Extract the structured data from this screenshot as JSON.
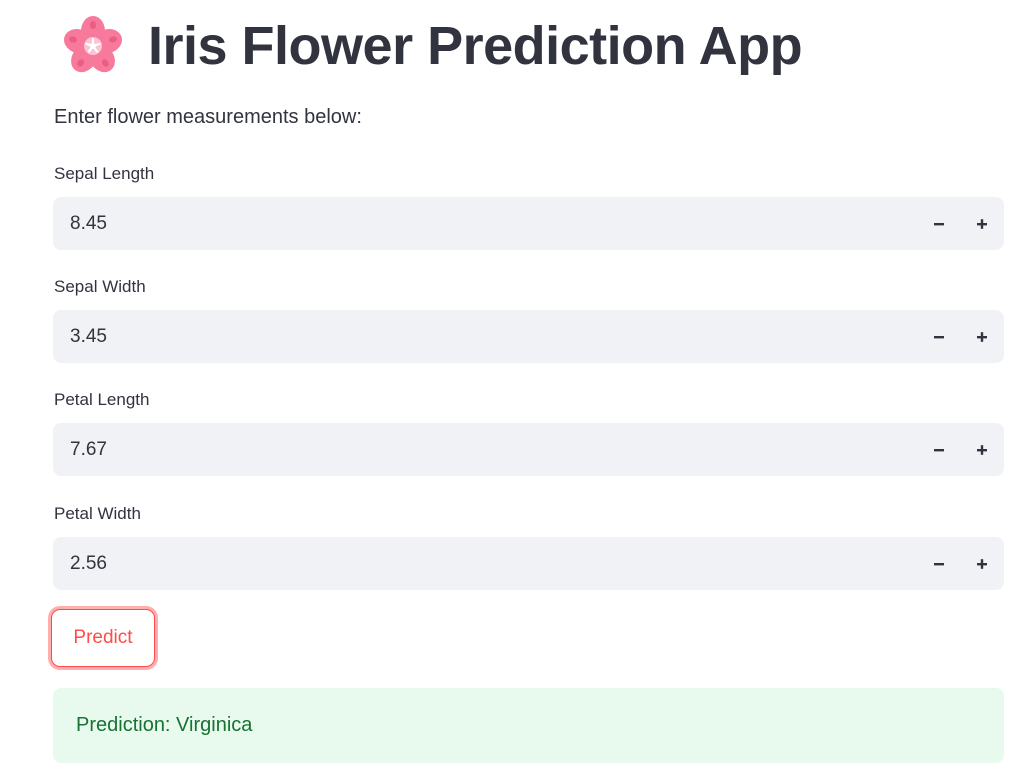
{
  "app": {
    "title": "Iris Flower Prediction App",
    "title_icon": "cherry-blossom-icon",
    "intro": "Enter flower measurements below:"
  },
  "fields": [
    {
      "label": "Sepal Length",
      "value": "8.45"
    },
    {
      "label": "Sepal Width",
      "value": "3.45"
    },
    {
      "label": "Petal Length",
      "value": "7.67"
    },
    {
      "label": "Petal Width",
      "value": "2.56"
    }
  ],
  "stepper": {
    "minus_icon": "minus-icon",
    "plus_icon": "plus-icon"
  },
  "predict_button": {
    "label": "Predict"
  },
  "result": {
    "text": "Prediction: Virginica"
  },
  "colors": {
    "accent": "#ff4b4b",
    "input_bg": "#f0f2f6",
    "success_bg": "#e8f9ee",
    "success_text": "#177233",
    "text": "#31333f"
  }
}
